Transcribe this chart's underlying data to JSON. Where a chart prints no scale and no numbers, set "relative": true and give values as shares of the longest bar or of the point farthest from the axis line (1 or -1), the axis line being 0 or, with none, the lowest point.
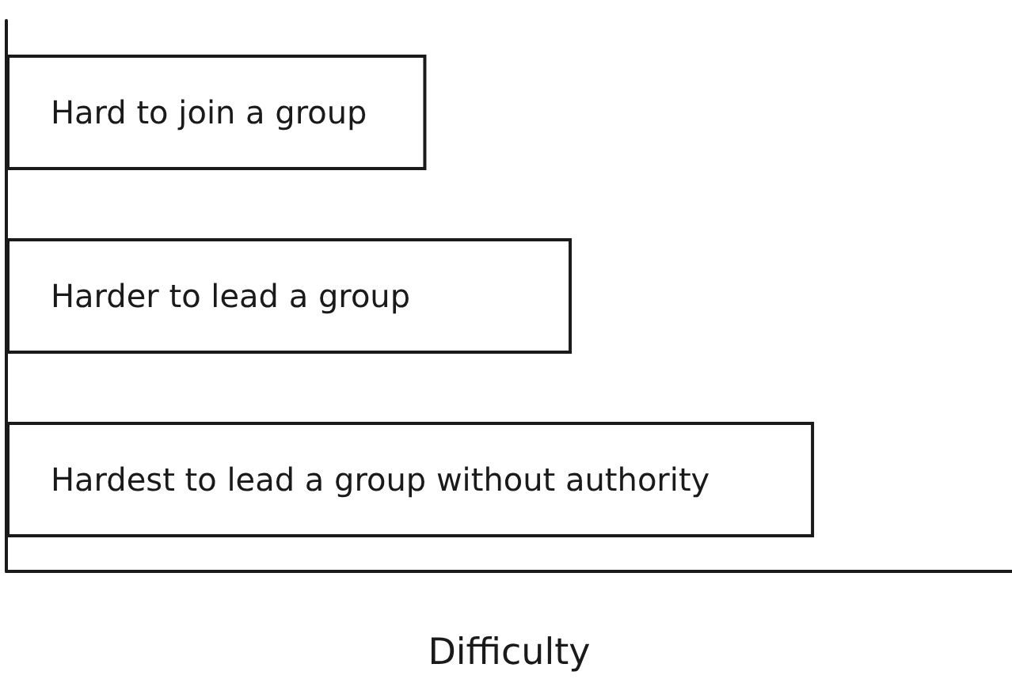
{
  "chart_data": {
    "type": "bar",
    "orientation": "horizontal",
    "relative": true,
    "categories": [
      "Hard to join a group",
      "Harder to lead a group",
      "Hardest to lead a group without authority"
    ],
    "values": [
      0.52,
      0.7,
      1
    ],
    "color": "#ffffff",
    "xlabel": "Difficulty",
    "tick_labels": "y"
  }
}
